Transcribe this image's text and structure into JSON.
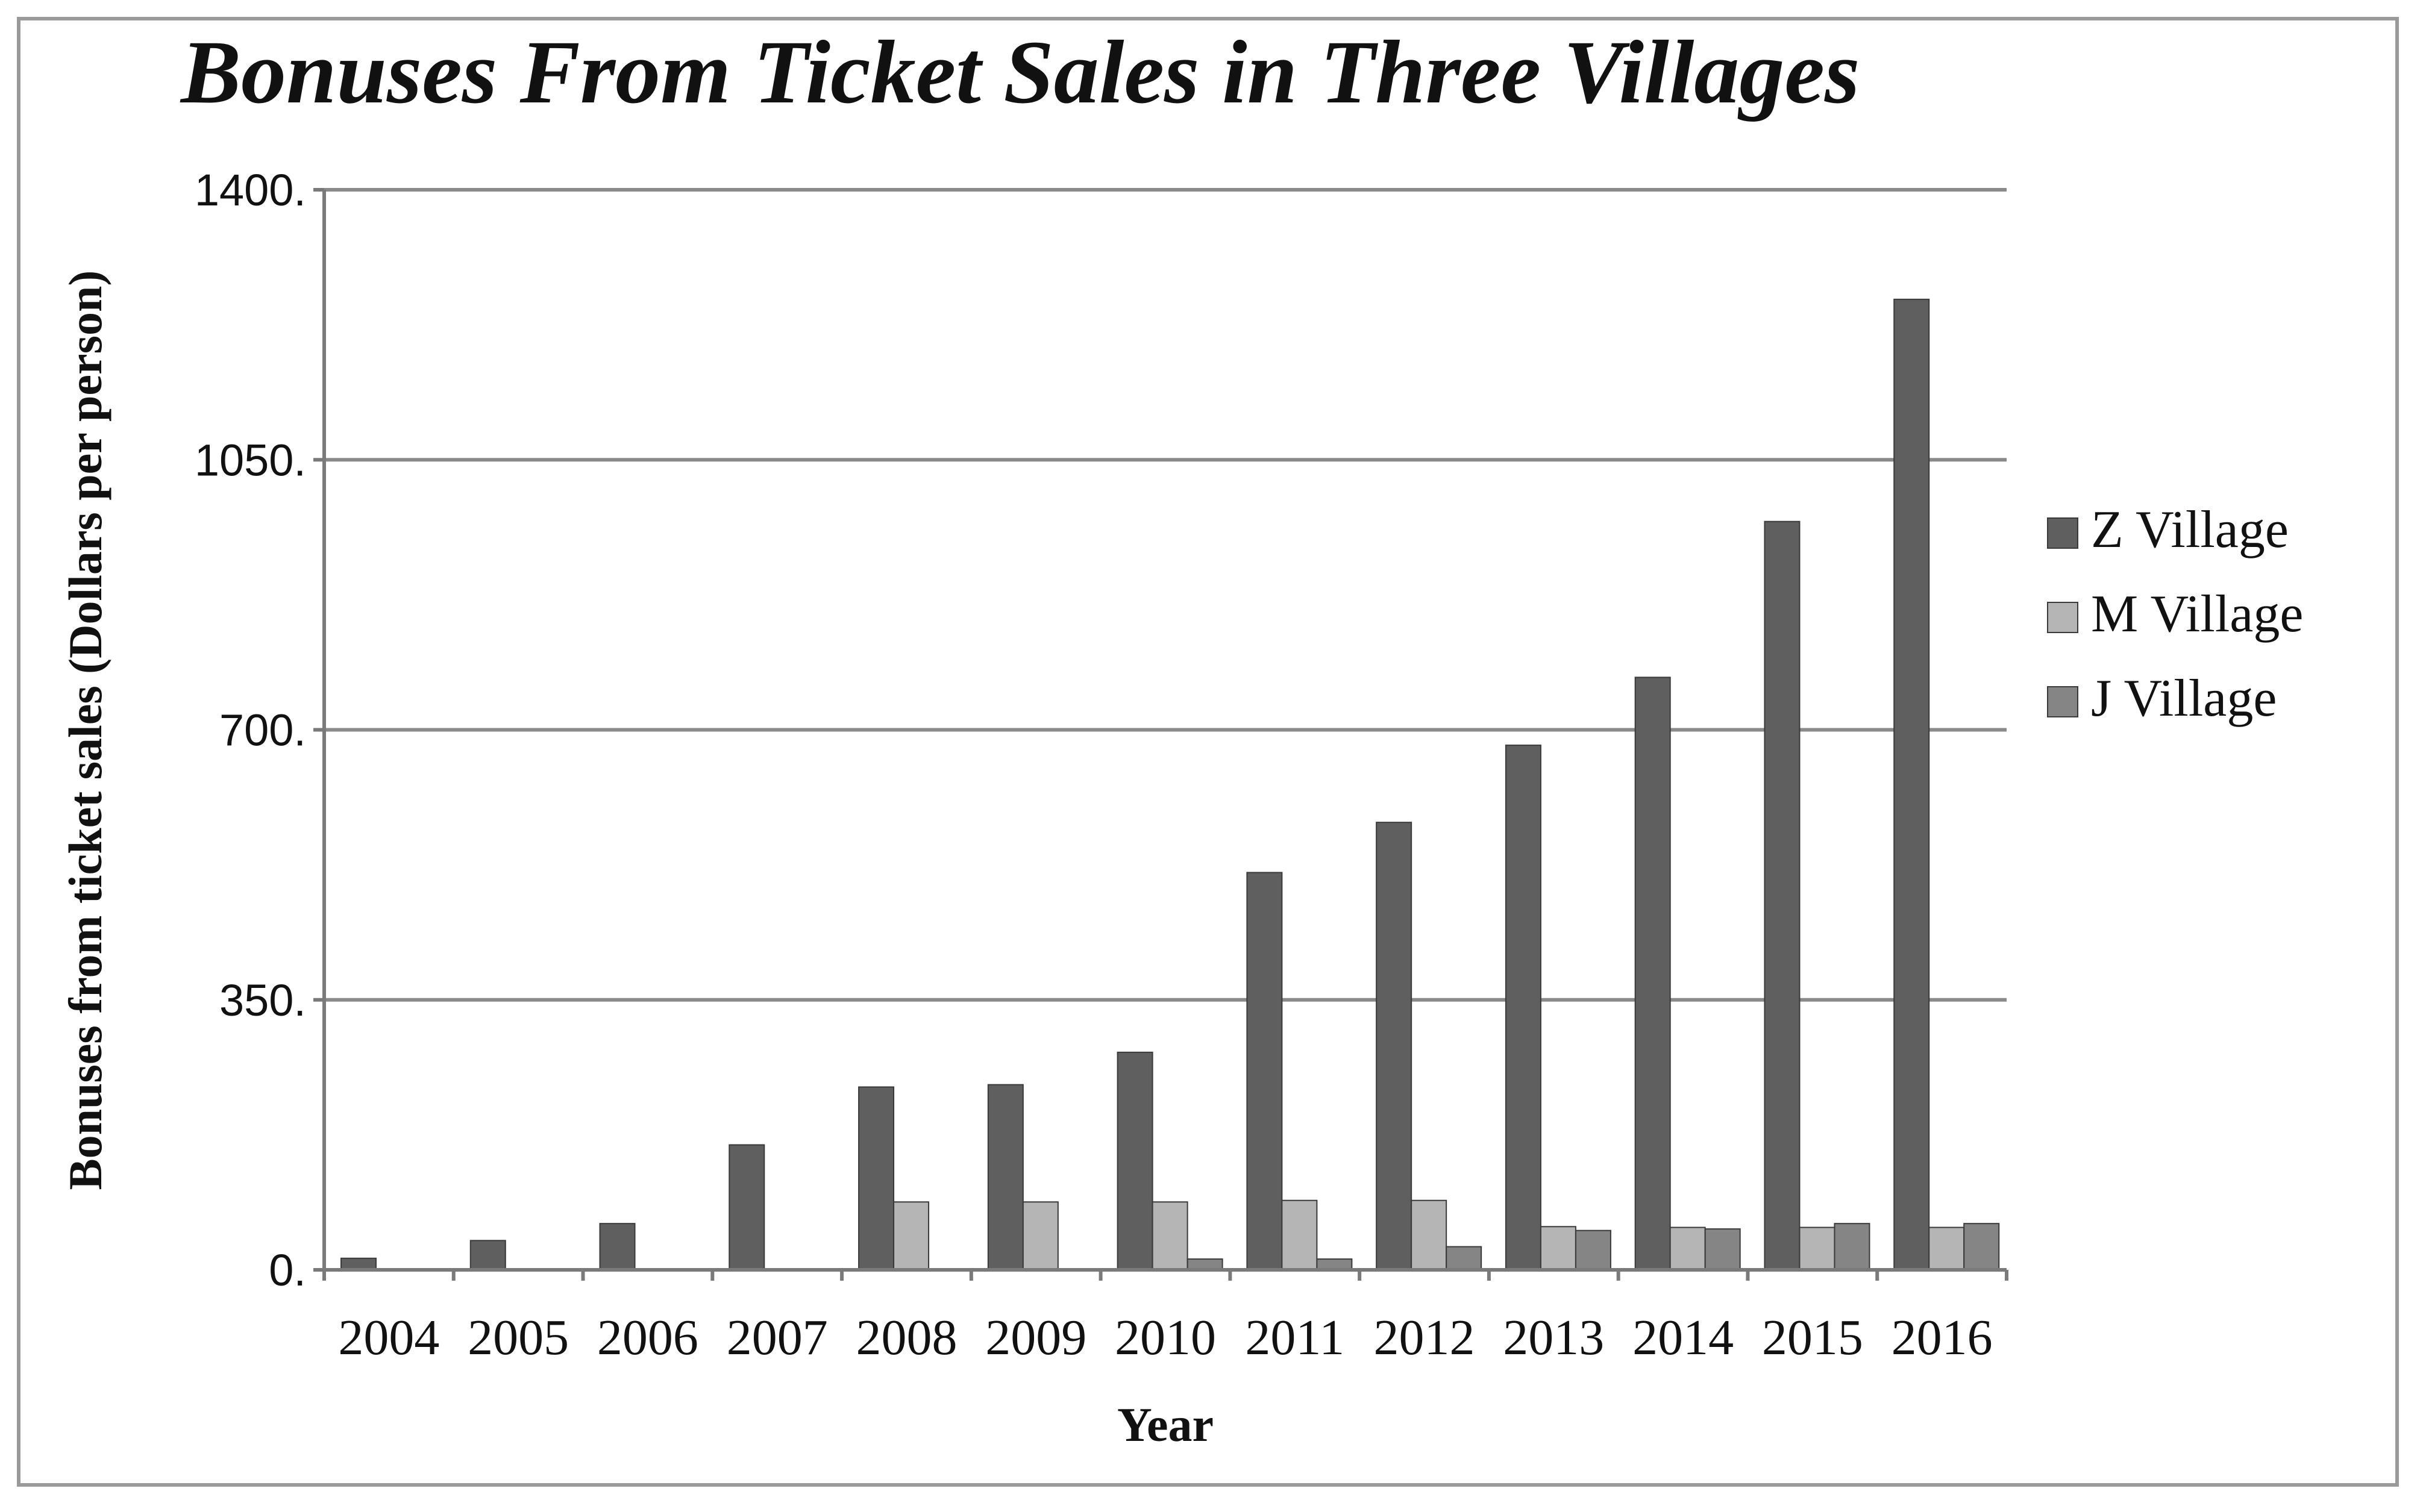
{
  "chart_data": {
    "type": "bar",
    "title": "Bonuses From Ticket Sales in Three Villages",
    "xlabel": "Year",
    "ylabel": "Bonuses from ticket sales (Dollars per person)",
    "ylim": [
      0,
      1400
    ],
    "yticks": [
      "0.",
      "350.",
      "700.",
      "1050.",
      "1400."
    ],
    "ytick_values": [
      0,
      350,
      700,
      1050,
      1400
    ],
    "grid": true,
    "legend_position": "right",
    "categories": [
      "2004",
      "2005",
      "2006",
      "2007",
      "2008",
      "2009",
      "2010",
      "2011",
      "2012",
      "2013",
      "2014",
      "2015",
      "2016"
    ],
    "series": [
      {
        "name": "Z Village",
        "color": "#5f5f5f",
        "values": [
          15,
          38,
          60,
          162,
          237,
          240,
          282,
          515,
          580,
          680,
          768,
          970,
          1258
        ]
      },
      {
        "name": "M Village",
        "color": "#b5b5b5",
        "values": [
          0,
          0,
          0,
          0,
          88,
          88,
          88,
          90,
          90,
          56,
          55,
          55,
          55
        ]
      },
      {
        "name": "J Village",
        "color": "#858585",
        "values": [
          0,
          0,
          0,
          0,
          0,
          0,
          14,
          14,
          30,
          51,
          53,
          60,
          60
        ]
      }
    ]
  }
}
